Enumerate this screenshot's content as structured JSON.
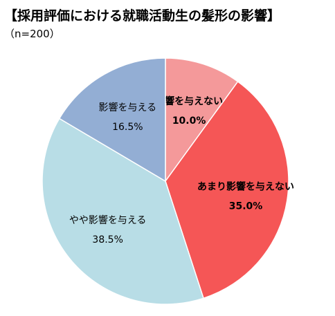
{
  "title": "【採用評価における就職活動生の髪形の影響】",
  "subtitle": "（n=200）",
  "chart_data": {
    "type": "pie",
    "title": "【採用評価における就職活動生の髪形の影響】",
    "subtitle": "（n=200）",
    "slices": [
      {
        "label": "影響を与えない",
        "value": 10.0,
        "value_label": "10.0%",
        "color": "#f4999a",
        "bold": true
      },
      {
        "label": "あまり影響を与えない",
        "value": 35.0,
        "value_label": "35.0%",
        "color": "#f55656",
        "bold": true
      },
      {
        "label": "やや影響を与える",
        "value": 38.5,
        "value_label": "38.5%",
        "color": "#b8dde6",
        "bold": false
      },
      {
        "label": "影響を与える",
        "value": 16.5,
        "value_label": "16.5%",
        "color": "#93aed4",
        "bold": false
      }
    ],
    "start_angle": "12 o'clock",
    "direction": "clockwise",
    "legend": "none",
    "labels": "inside"
  }
}
